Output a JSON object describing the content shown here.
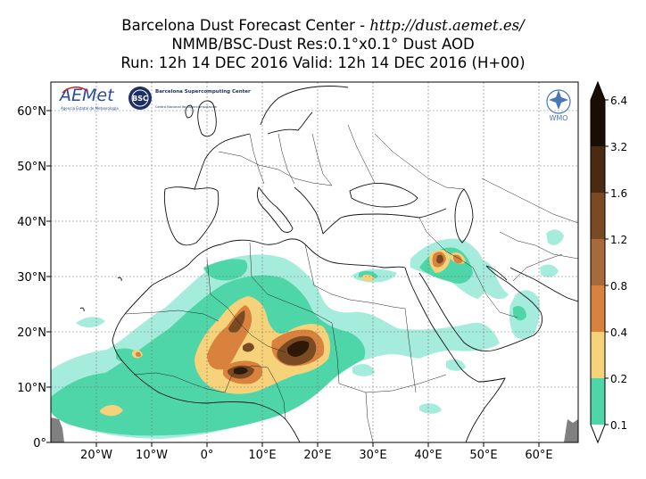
{
  "header": {
    "line1_prefix": "Barcelona Dust Forecast Center - ",
    "line1_url": "http://dust.aemet.es/",
    "line2": "NMMB/BSC-Dust   Res:0.1°x0.1°   Dust AOD",
    "line3": "Run: 12h 14 DEC 2016   Valid: 12h 14 DEC 2016 (H+00)"
  },
  "axes": {
    "lat_labels": [
      "60°N",
      "50°N",
      "40°N",
      "30°N",
      "20°N",
      "10°N",
      "0°"
    ],
    "lon_labels": [
      "20°W",
      "10°W",
      "0°",
      "10°E",
      "20°E",
      "30°E",
      "40°E",
      "50°E",
      "60°E"
    ]
  },
  "colorbar": {
    "labels": [
      "6.4",
      "3.2",
      "1.6",
      "1.2",
      "0.8",
      "0.4",
      "0.2",
      "0.1"
    ],
    "colors": [
      "#1a0d04",
      "#4a2a10",
      "#7a4a22",
      "#a86a3a",
      "#d8823e",
      "#f6d27a",
      "#4fd6a8",
      "#a6ecdc"
    ],
    "under_color": "#ffffff",
    "over_color": "#1a0d04"
  },
  "logos": {
    "aemet_name": "AEMet",
    "aemet_sub": "Agencia Estatal de Meteorología",
    "bsc_badge": "BSC",
    "bsc_name": "Barcelona Supercomputing Center",
    "bsc_sub": "Centro Nacional de Supercomputación",
    "wmo_label": "WMO"
  }
}
